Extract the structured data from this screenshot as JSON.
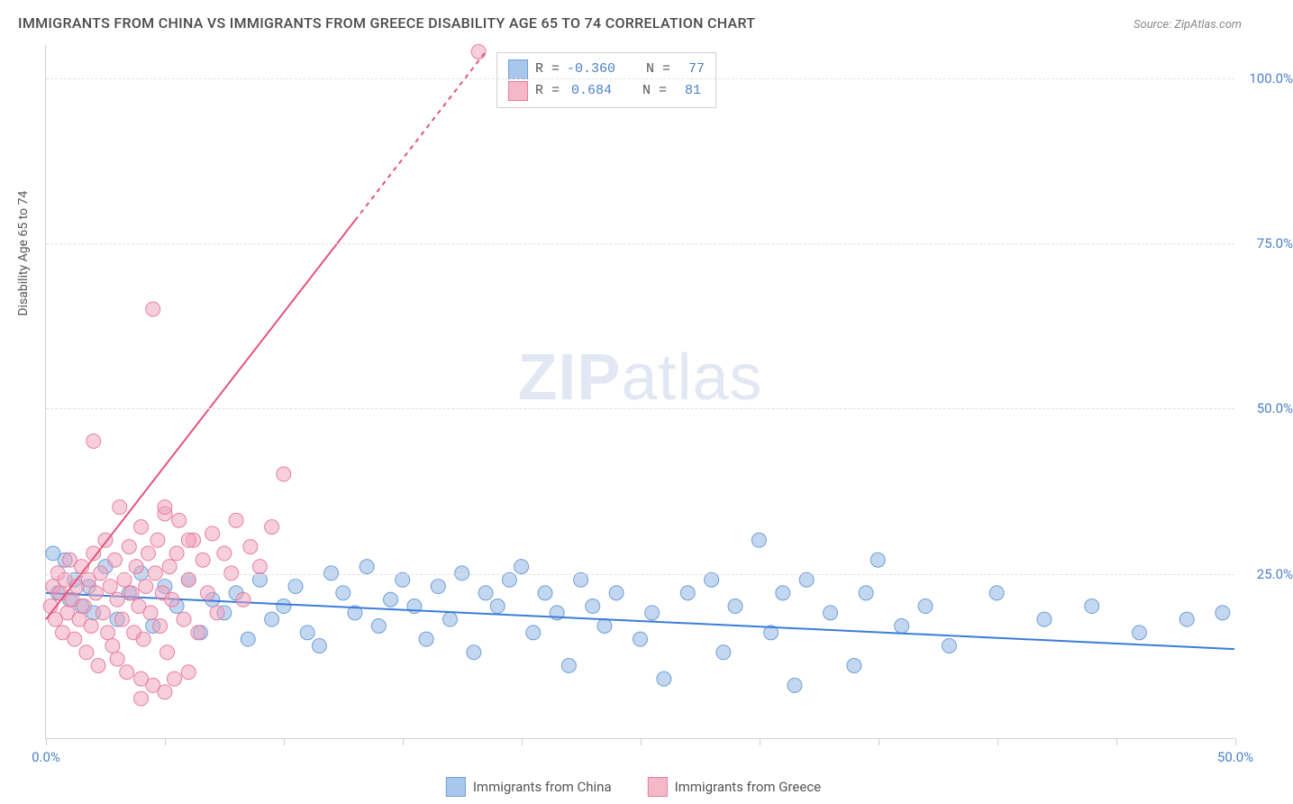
{
  "title": "IMMIGRANTS FROM CHINA VS IMMIGRANTS FROM GREECE DISABILITY AGE 65 TO 74 CORRELATION CHART",
  "source": "Source: ZipAtlas.com",
  "y_axis_title": "Disability Age 65 to 74",
  "watermark_bold": "ZIP",
  "watermark_light": "atlas",
  "chart": {
    "type": "scatter",
    "background_color": "#ffffff",
    "grid_color": "#e0e0e0",
    "axis_color": "#cfcfcf",
    "xlim": [
      0,
      50
    ],
    "ylim": [
      0,
      105
    ],
    "x_ticks": [
      0,
      5,
      10,
      15,
      20,
      25,
      30,
      35,
      40,
      45,
      50
    ],
    "x_tick_labels": {
      "0": "0.0%",
      "50": "50.0%"
    },
    "y_ticks": [
      25,
      50,
      75,
      100
    ],
    "y_tick_labels": {
      "25": "25.0%",
      "50": "50.0%",
      "75": "75.0%",
      "100": "100.0%"
    },
    "legend_stats": [
      {
        "color_fill": "#a9c7ec",
        "color_stroke": "#6f9fd8",
        "r_label": "R =",
        "r_value": "-0.360",
        "n_label": "N =",
        "n_value": "77"
      },
      {
        "color_fill": "#f5b8c8",
        "color_stroke": "#e87fa0",
        "r_label": "R =",
        "r_value": "0.684",
        "n_label": "N =",
        "n_value": "81"
      }
    ],
    "legend_bottom": [
      {
        "color_fill": "#a9c7ec",
        "color_stroke": "#6f9fd8",
        "label": "Immigrants from China"
      },
      {
        "color_fill": "#f5b8c8",
        "color_stroke": "#e87fa0",
        "label": "Immigrants from Greece"
      }
    ],
    "series": [
      {
        "name": "china",
        "fill": "rgba(135,178,226,0.5)",
        "stroke": "#6f9fd8",
        "marker_radius": 8,
        "trend": {
          "x1": 0,
          "y1": 22,
          "x2": 50,
          "y2": 13.5,
          "stroke": "#3b7dd8",
          "width": 2
        },
        "points": [
          [
            0.3,
            28
          ],
          [
            0.5,
            22
          ],
          [
            0.8,
            27
          ],
          [
            1.0,
            21
          ],
          [
            1.2,
            24
          ],
          [
            1.5,
            20
          ],
          [
            1.8,
            23
          ],
          [
            2.0,
            19
          ],
          [
            2.5,
            26
          ],
          [
            3.0,
            18
          ],
          [
            3.5,
            22
          ],
          [
            4.0,
            25
          ],
          [
            4.5,
            17
          ],
          [
            5.0,
            23
          ],
          [
            5.5,
            20
          ],
          [
            6.0,
            24
          ],
          [
            6.5,
            16
          ],
          [
            7.0,
            21
          ],
          [
            7.5,
            19
          ],
          [
            8.0,
            22
          ],
          [
            8.5,
            15
          ],
          [
            9.0,
            24
          ],
          [
            9.5,
            18
          ],
          [
            10.0,
            20
          ],
          [
            10.5,
            23
          ],
          [
            11.0,
            16
          ],
          [
            11.5,
            14
          ],
          [
            12.0,
            25
          ],
          [
            12.5,
            22
          ],
          [
            13.0,
            19
          ],
          [
            13.5,
            26
          ],
          [
            14.0,
            17
          ],
          [
            14.5,
            21
          ],
          [
            15.0,
            24
          ],
          [
            15.5,
            20
          ],
          [
            16.0,
            15
          ],
          [
            16.5,
            23
          ],
          [
            17.0,
            18
          ],
          [
            17.5,
            25
          ],
          [
            18.0,
            13
          ],
          [
            18.5,
            22
          ],
          [
            19.0,
            20
          ],
          [
            19.5,
            24
          ],
          [
            20.0,
            26
          ],
          [
            20.5,
            16
          ],
          [
            21.0,
            22
          ],
          [
            21.5,
            19
          ],
          [
            22.0,
            11
          ],
          [
            22.5,
            24
          ],
          [
            23.0,
            20
          ],
          [
            23.5,
            17
          ],
          [
            24.0,
            22
          ],
          [
            25.0,
            15
          ],
          [
            25.5,
            19
          ],
          [
            26.0,
            9
          ],
          [
            27.0,
            22
          ],
          [
            28.0,
            24
          ],
          [
            28.5,
            13
          ],
          [
            29.0,
            20
          ],
          [
            30.0,
            30
          ],
          [
            30.5,
            16
          ],
          [
            31.0,
            22
          ],
          [
            31.5,
            8
          ],
          [
            32.0,
            24
          ],
          [
            33.0,
            19
          ],
          [
            34.0,
            11
          ],
          [
            34.5,
            22
          ],
          [
            35.0,
            27
          ],
          [
            36.0,
            17
          ],
          [
            37.0,
            20
          ],
          [
            38.0,
            14
          ],
          [
            40.0,
            22
          ],
          [
            42.0,
            18
          ],
          [
            44.0,
            20
          ],
          [
            46.0,
            16
          ],
          [
            48.0,
            18
          ],
          [
            49.5,
            19
          ]
        ]
      },
      {
        "name": "greece",
        "fill": "rgba(240,160,185,0.5)",
        "stroke": "#e87fa0",
        "marker_radius": 8,
        "trend": {
          "x1": 0,
          "y1": 18,
          "x2": 18.5,
          "y2": 104,
          "stroke": "#e6537d",
          "width": 2,
          "dash_from_x": 13
        },
        "points": [
          [
            0.2,
            20
          ],
          [
            0.3,
            23
          ],
          [
            0.4,
            18
          ],
          [
            0.5,
            25
          ],
          [
            0.6,
            22
          ],
          [
            0.7,
            16
          ],
          [
            0.8,
            24
          ],
          [
            0.9,
            19
          ],
          [
            1.0,
            27
          ],
          [
            1.1,
            21
          ],
          [
            1.2,
            15
          ],
          [
            1.3,
            23
          ],
          [
            1.4,
            18
          ],
          [
            1.5,
            26
          ],
          [
            1.6,
            20
          ],
          [
            1.7,
            13
          ],
          [
            1.8,
            24
          ],
          [
            1.9,
            17
          ],
          [
            2.0,
            28
          ],
          [
            2.1,
            22
          ],
          [
            2.2,
            11
          ],
          [
            2.3,
            25
          ],
          [
            2.4,
            19
          ],
          [
            2.5,
            30
          ],
          [
            2.6,
            16
          ],
          [
            2.7,
            23
          ],
          [
            2.8,
            14
          ],
          [
            2.9,
            27
          ],
          [
            3.0,
            21
          ],
          [
            3.1,
            35
          ],
          [
            3.2,
            18
          ],
          [
            3.3,
            24
          ],
          [
            3.4,
            10
          ],
          [
            3.5,
            29
          ],
          [
            3.6,
            22
          ],
          [
            3.7,
            16
          ],
          [
            3.8,
            26
          ],
          [
            3.9,
            20
          ],
          [
            4.0,
            32
          ],
          [
            4.1,
            15
          ],
          [
            4.2,
            23
          ],
          [
            4.3,
            28
          ],
          [
            4.4,
            19
          ],
          [
            4.5,
            8
          ],
          [
            4.6,
            25
          ],
          [
            4.7,
            30
          ],
          [
            4.8,
            17
          ],
          [
            4.9,
            22
          ],
          [
            5.0,
            34
          ],
          [
            5.1,
            13
          ],
          [
            5.2,
            26
          ],
          [
            5.3,
            21
          ],
          [
            5.4,
            9
          ],
          [
            5.5,
            28
          ],
          [
            5.6,
            33
          ],
          [
            5.8,
            18
          ],
          [
            6.0,
            24
          ],
          [
            6.2,
            30
          ],
          [
            6.4,
            16
          ],
          [
            6.6,
            27
          ],
          [
            6.8,
            22
          ],
          [
            7.0,
            31
          ],
          [
            7.2,
            19
          ],
          [
            7.5,
            28
          ],
          [
            7.8,
            25
          ],
          [
            8.0,
            33
          ],
          [
            8.3,
            21
          ],
          [
            8.6,
            29
          ],
          [
            9.0,
            26
          ],
          [
            9.5,
            32
          ],
          [
            2.0,
            45
          ],
          [
            4.5,
            65
          ],
          [
            5.0,
            35
          ],
          [
            6.0,
            30
          ],
          [
            10.0,
            40
          ],
          [
            3.0,
            12
          ],
          [
            4.0,
            9
          ],
          [
            5.0,
            7
          ],
          [
            6.0,
            10
          ],
          [
            4.0,
            6
          ],
          [
            18.2,
            104
          ]
        ]
      }
    ]
  }
}
